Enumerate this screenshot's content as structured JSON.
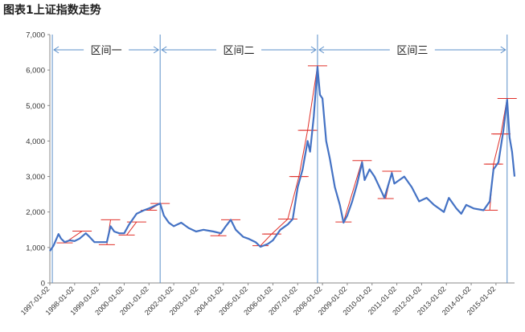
{
  "title": "图表1上证指数走势",
  "chart_data": {
    "type": "line",
    "title": "图表1上证指数走势",
    "ylim": [
      0,
      7000
    ],
    "yticks": [
      "0",
      "1,000",
      "2,000",
      "3,000",
      "4,000",
      "5,000",
      "6,000",
      "7,000"
    ],
    "xlabels": [
      "1997-01-02",
      "1998-01-02",
      "1999-01-02",
      "2000-01-02",
      "2001-01-02",
      "2002-01-02",
      "2003-01-02",
      "2004-01-02",
      "2005-01-02",
      "2006-01-02",
      "2007-01-02",
      "2008-01-02",
      "2009-01-02",
      "2010-01-02",
      "2011-01-02",
      "2012-01-02",
      "2013-01-02",
      "2014-01-02",
      "2015-01-02"
    ],
    "x_range": [
      1997.0,
      2015.75
    ],
    "series": [
      {
        "color": "#4472c4",
        "points": [
          [
            1997.0,
            900
          ],
          [
            1997.15,
            1050
          ],
          [
            1997.35,
            1380
          ],
          [
            1997.45,
            1250
          ],
          [
            1997.6,
            1150
          ],
          [
            1997.8,
            1200
          ],
          [
            1998.0,
            1180
          ],
          [
            1998.2,
            1250
          ],
          [
            1998.45,
            1400
          ],
          [
            1998.6,
            1300
          ],
          [
            1998.8,
            1150
          ],
          [
            1999.0,
            1150
          ],
          [
            1999.3,
            1150
          ],
          [
            1999.45,
            1600
          ],
          [
            1999.6,
            1450
          ],
          [
            1999.8,
            1400
          ],
          [
            2000.0,
            1400
          ],
          [
            2000.2,
            1650
          ],
          [
            2000.5,
            1950
          ],
          [
            2000.8,
            2050
          ],
          [
            2001.0,
            2100
          ],
          [
            2001.45,
            2240
          ],
          [
            2001.6,
            1900
          ],
          [
            2001.8,
            1700
          ],
          [
            2002.0,
            1600
          ],
          [
            2002.3,
            1700
          ],
          [
            2002.6,
            1550
          ],
          [
            2002.9,
            1450
          ],
          [
            2003.2,
            1500
          ],
          [
            2003.6,
            1450
          ],
          [
            2003.9,
            1400
          ],
          [
            2004.1,
            1600
          ],
          [
            2004.3,
            1780
          ],
          [
            2004.5,
            1500
          ],
          [
            2004.8,
            1300
          ],
          [
            2005.0,
            1250
          ],
          [
            2005.3,
            1150
          ],
          [
            2005.5,
            1020
          ],
          [
            2005.8,
            1100
          ],
          [
            2006.0,
            1200
          ],
          [
            2006.3,
            1500
          ],
          [
            2006.6,
            1650
          ],
          [
            2006.8,
            1800
          ],
          [
            2007.0,
            2700
          ],
          [
            2007.2,
            3200
          ],
          [
            2007.4,
            4000
          ],
          [
            2007.5,
            3700
          ],
          [
            2007.65,
            4700
          ],
          [
            2007.8,
            6092
          ],
          [
            2007.9,
            5300
          ],
          [
            2008.0,
            5200
          ],
          [
            2008.15,
            4000
          ],
          [
            2008.3,
            3500
          ],
          [
            2008.5,
            2700
          ],
          [
            2008.7,
            2200
          ],
          [
            2008.85,
            1700
          ],
          [
            2009.0,
            1900
          ],
          [
            2009.2,
            2300
          ],
          [
            2009.4,
            2800
          ],
          [
            2009.6,
            3400
          ],
          [
            2009.7,
            2900
          ],
          [
            2009.9,
            3200
          ],
          [
            2010.1,
            3000
          ],
          [
            2010.3,
            2700
          ],
          [
            2010.5,
            2400
          ],
          [
            2010.8,
            3100
          ],
          [
            2010.9,
            2800
          ],
          [
            2011.1,
            2900
          ],
          [
            2011.3,
            3000
          ],
          [
            2011.6,
            2700
          ],
          [
            2011.9,
            2300
          ],
          [
            2012.2,
            2400
          ],
          [
            2012.5,
            2200
          ],
          [
            2012.9,
            2000
          ],
          [
            2013.1,
            2400
          ],
          [
            2013.4,
            2100
          ],
          [
            2013.6,
            1950
          ],
          [
            2013.8,
            2200
          ],
          [
            2014.1,
            2100
          ],
          [
            2014.5,
            2050
          ],
          [
            2014.75,
            2300
          ],
          [
            2014.9,
            3200
          ],
          [
            2015.1,
            3400
          ],
          [
            2015.3,
            4300
          ],
          [
            2015.45,
            5166
          ],
          [
            2015.55,
            4100
          ],
          [
            2015.65,
            3700
          ],
          [
            2015.75,
            3000
          ]
        ]
      }
    ],
    "regions": [
      {
        "label": "区间一",
        "start": 1997.1,
        "end": 2001.45
      },
      {
        "label": "区间二",
        "start": 2001.45,
        "end": 2007.8
      },
      {
        "label": "区间三",
        "start": 2007.8,
        "end": 2015.45
      }
    ],
    "rises": [
      {
        "x0": 1997.6,
        "y0": 1130,
        "x1": 1998.3,
        "y1": 1460
      },
      {
        "x0": 1999.3,
        "y0": 1080,
        "x1": 1999.45,
        "y1": 1780
      },
      {
        "x0": 2000.1,
        "y0": 1350,
        "x1": 2000.5,
        "y1": 1720
      },
      {
        "x0": 2001.0,
        "y0": 2050,
        "x1": 2001.45,
        "y1": 2240
      },
      {
        "x0": 2003.8,
        "y0": 1330,
        "x1": 2004.3,
        "y1": 1780
      },
      {
        "x0": 2005.5,
        "y0": 1050,
        "x1": 2005.95,
        "y1": 1380
      },
      {
        "x0": 2005.95,
        "y0": 1380,
        "x1": 2006.6,
        "y1": 1800
      },
      {
        "x0": 2006.6,
        "y0": 1800,
        "x1": 2007.05,
        "y1": 3000
      },
      {
        "x0": 2007.05,
        "y0": 3000,
        "x1": 2007.4,
        "y1": 4300
      },
      {
        "x0": 2007.4,
        "y0": 4300,
        "x1": 2007.8,
        "y1": 6120
      },
      {
        "x0": 2008.85,
        "y0": 1720,
        "x1": 2009.6,
        "y1": 3450
      },
      {
        "x0": 2010.55,
        "y0": 2380,
        "x1": 2010.8,
        "y1": 3150
      },
      {
        "x0": 2014.75,
        "y0": 2050,
        "x1": 2014.9,
        "y1": 3350
      },
      {
        "x0": 2014.9,
        "y0": 3350,
        "x1": 2015.2,
        "y1": 4200
      },
      {
        "x0": 2015.2,
        "y0": 4200,
        "x1": 2015.45,
        "y1": 5200
      }
    ]
  }
}
